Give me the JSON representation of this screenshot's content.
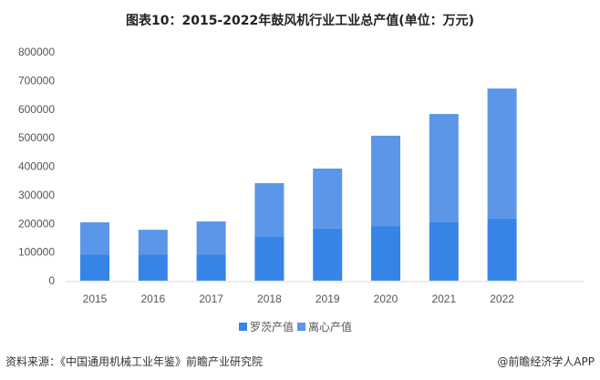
{
  "chart_data": {
    "type": "bar",
    "stacked": true,
    "title": "图表10：2015-2022年鼓风机行业工业总产值(单位：万元)",
    "categories": [
      "2015",
      "2016",
      "2017",
      "2018",
      "2019",
      "2020",
      "2021",
      "2022"
    ],
    "series": [
      {
        "name": "罗茨产值",
        "color": "#3784E7",
        "values": [
          92000,
          92000,
          92000,
          153000,
          182000,
          191000,
          204000,
          217000
        ]
      },
      {
        "name": "离心产值",
        "color": "#5B96E8",
        "values": [
          112000,
          86000,
          115000,
          188000,
          210000,
          316000,
          379000,
          455000
        ]
      }
    ],
    "yticks": [
      "0",
      "100000",
      "200000",
      "300000",
      "400000",
      "500000",
      "600000",
      "700000",
      "800000"
    ],
    "ylim": [
      0,
      800000
    ],
    "grid": false,
    "legend_position": "bottom"
  },
  "footer": {
    "source": "资料来源：《中国通用机械工业年鉴》前瞻产业研究院",
    "credit": "@前瞻经济学人APP"
  }
}
